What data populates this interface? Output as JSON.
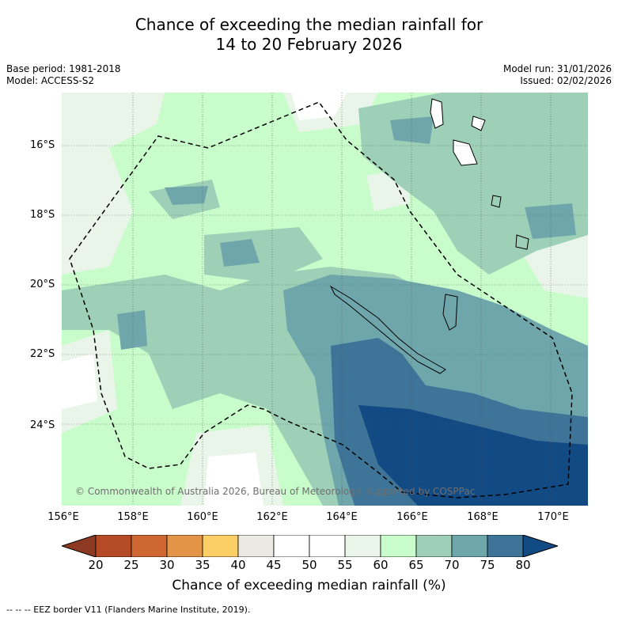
{
  "title_line1": "Chance of exceeding the median rainfall for",
  "title_line2": "14 to 20 February 2026",
  "meta": {
    "base_period": "Base period: 1981-2018",
    "model": "Model: ACCESS-S2",
    "model_run": "Model run: 31/01/2026",
    "issued": "Issued: 02/02/2026"
  },
  "copyright": "© Commonwealth of Australia 2026, Bureau of Meteorology, supported by COSPPac",
  "axes": {
    "lat_labels": [
      "16°S",
      "18°S",
      "20°S",
      "22°S",
      "24°S"
    ],
    "lon_labels": [
      "156°E",
      "158°E",
      "160°E",
      "162°E",
      "164°E",
      "166°E",
      "168°E",
      "170°E"
    ]
  },
  "colorbar": {
    "ticks": [
      "20",
      "25",
      "30",
      "35",
      "40",
      "45",
      "50",
      "55",
      "60",
      "65",
      "70",
      "75",
      "80"
    ],
    "colors": [
      "#8e3a22",
      "#b44a26",
      "#cf6733",
      "#e39446",
      "#fccf66",
      "#ebe9e4",
      "#ffffff",
      "#ffffff",
      "#eaf5ea",
      "#c9fccb",
      "#9dd0b6",
      "#6fa6ab",
      "#3e7497",
      "#124a83"
    ],
    "label": "Chance of exceeding median rainfall (%)"
  },
  "footer": "--  --  -- EEZ border V11 (Flanders Marine Institute, 2019)."
}
